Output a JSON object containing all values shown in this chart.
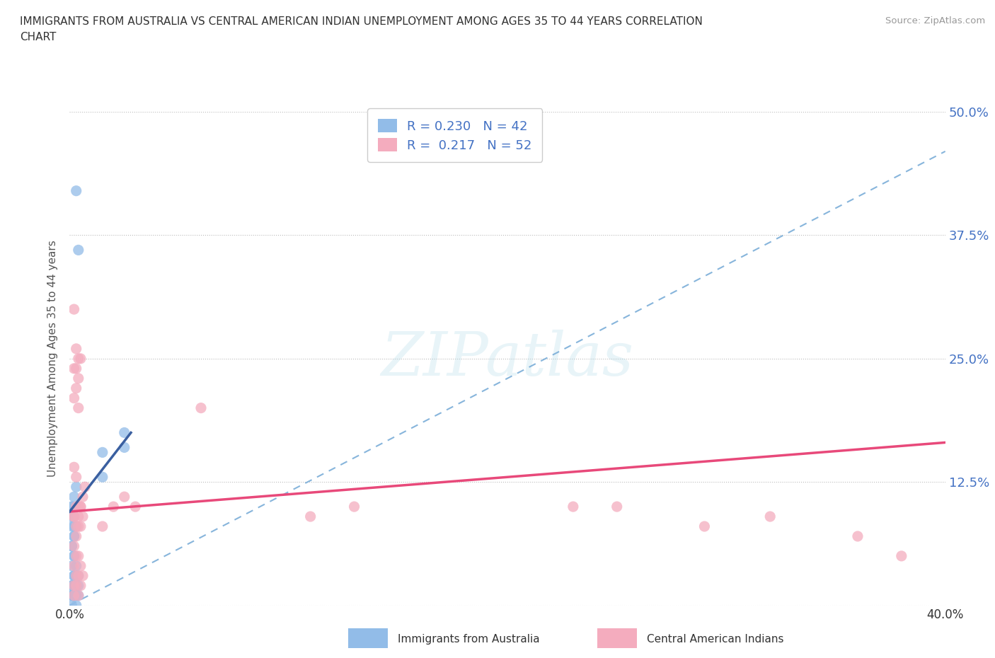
{
  "title_line1": "IMMIGRANTS FROM AUSTRALIA VS CENTRAL AMERICAN INDIAN UNEMPLOYMENT AMONG AGES 35 TO 44 YEARS CORRELATION",
  "title_line2": "CHART",
  "source": "Source: ZipAtlas.com",
  "ylabel": "Unemployment Among Ages 35 to 44 years",
  "r_australia": 0.23,
  "n_australia": 42,
  "r_central": 0.217,
  "n_central": 52,
  "color_australia": "#92BCE8",
  "color_central": "#F4ACBE",
  "color_trend_australia": "#3A5FA0",
  "color_trend_central": "#E8497A",
  "color_trend_dashed": "#7AADD8",
  "xlim": [
    0.0,
    0.4
  ],
  "ylim": [
    0.0,
    0.5
  ],
  "watermark": "ZIPatlas",
  "aus_x": [
    0.003,
    0.004,
    0.001,
    0.002,
    0.001,
    0.002,
    0.001,
    0.002,
    0.003,
    0.001,
    0.002,
    0.001,
    0.003,
    0.002,
    0.001,
    0.002,
    0.003,
    0.004,
    0.002,
    0.001,
    0.003,
    0.001,
    0.002,
    0.003,
    0.004,
    0.002,
    0.001,
    0.003,
    0.002,
    0.001,
    0.004,
    0.002,
    0.001,
    0.003,
    0.015,
    0.015,
    0.025,
    0.025,
    0.003,
    0.002,
    0.001,
    0.002
  ],
  "aus_y": [
    0.42,
    0.36,
    0.1,
    0.09,
    0.08,
    0.07,
    0.06,
    0.07,
    0.08,
    0.09,
    0.05,
    0.06,
    0.04,
    0.05,
    0.04,
    0.03,
    0.02,
    0.03,
    0.02,
    0.01,
    0.03,
    0.02,
    0.01,
    0.02,
    0.01,
    0.01,
    0.0,
    0.01,
    0.01,
    0.02,
    0.02,
    0.03,
    0.01,
    0.0,
    0.155,
    0.13,
    0.175,
    0.16,
    0.12,
    0.11,
    0.1,
    0.08
  ],
  "cen_x": [
    0.002,
    0.003,
    0.004,
    0.002,
    0.003,
    0.004,
    0.005,
    0.003,
    0.002,
    0.004,
    0.005,
    0.006,
    0.007,
    0.003,
    0.002,
    0.004,
    0.005,
    0.003,
    0.002,
    0.004,
    0.005,
    0.006,
    0.015,
    0.02,
    0.025,
    0.03,
    0.06,
    0.11,
    0.13,
    0.23,
    0.25,
    0.29,
    0.32,
    0.36,
    0.38,
    0.003,
    0.002,
    0.004,
    0.005,
    0.003,
    0.002,
    0.004,
    0.005,
    0.006,
    0.003,
    0.002,
    0.004,
    0.003,
    0.002,
    0.004,
    0.003,
    0.002
  ],
  "cen_y": [
    0.3,
    0.26,
    0.25,
    0.24,
    0.24,
    0.23,
    0.25,
    0.22,
    0.21,
    0.2,
    0.1,
    0.11,
    0.12,
    0.13,
    0.14,
    0.09,
    0.08,
    0.1,
    0.09,
    0.08,
    0.1,
    0.09,
    0.08,
    0.1,
    0.11,
    0.1,
    0.2,
    0.09,
    0.1,
    0.1,
    0.1,
    0.08,
    0.09,
    0.07,
    0.05,
    0.07,
    0.06,
    0.05,
    0.04,
    0.03,
    0.02,
    0.01,
    0.02,
    0.03,
    0.08,
    0.09,
    0.1,
    0.05,
    0.04,
    0.03,
    0.02,
    0.01
  ],
  "trend_aus_x0": 0.0,
  "trend_aus_y0": 0.095,
  "trend_aus_x1": 0.028,
  "trend_aus_y1": 0.175,
  "trend_dashed_x0": 0.0,
  "trend_dashed_y0": 0.0,
  "trend_dashed_x1": 0.4,
  "trend_dashed_y1": 0.46,
  "trend_cen_x0": 0.0,
  "trend_cen_y0": 0.095,
  "trend_cen_x1": 0.4,
  "trend_cen_y1": 0.165
}
